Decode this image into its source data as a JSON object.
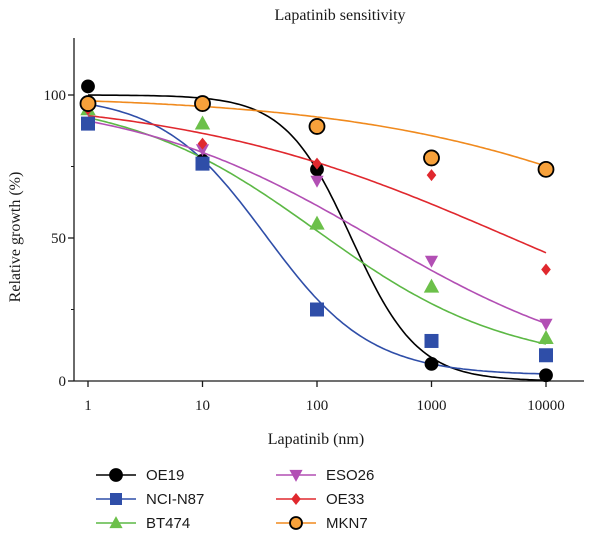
{
  "chart_data": {
    "type": "scatter",
    "title": "Lapatinib sensitivity",
    "xlabel": "Lapatinib (nm)",
    "ylabel": "Relative growth (%)",
    "xscale": "log",
    "xlim": [
      1,
      10000
    ],
    "ylim": [
      0,
      100
    ],
    "x": [
      1,
      10,
      100,
      1000,
      10000
    ],
    "x_tick_labels": [
      "1",
      "10",
      "100",
      "1000",
      "10000"
    ],
    "y_ticks": [
      0,
      50,
      100
    ],
    "y_tick_labels": [
      "0",
      "50",
      "100"
    ],
    "legend_position": "bottom",
    "series": [
      {
        "name": "OE19",
        "color": "#000000",
        "marker": "circle",
        "fill": "#000000",
        "values": [
          103,
          77,
          74,
          6,
          2
        ],
        "fit": {
          "top": 100,
          "bottom": 0,
          "log_ic50": 2.3,
          "hill": 1.5
        }
      },
      {
        "name": "NCI-N87",
        "color": "#2f4ea8",
        "marker": "square",
        "fill": "#2f4ea8",
        "values": [
          90,
          76,
          25,
          14,
          9
        ],
        "fit": {
          "top": 100,
          "bottom": 2,
          "log_ic50": 1.55,
          "hill": 0.95
        }
      },
      {
        "name": "BT474",
        "color": "#5cb845",
        "marker": "triangle-up",
        "fill": "#6cc04a",
        "values": [
          95,
          90,
          55,
          33,
          15
        ],
        "fit": {
          "top": 100,
          "bottom": 5,
          "log_ic50": 2.0,
          "hill": 0.52
        }
      },
      {
        "name": "ESO26",
        "color": "#b24fb4",
        "marker": "triangle-down",
        "fill": "#b24fb4",
        "values": [
          95,
          81,
          70,
          42,
          20
        ],
        "fit": {
          "top": 100,
          "bottom": 0,
          "log_ic50": 2.5,
          "hill": 0.4
        }
      },
      {
        "name": "OE33",
        "color": "#e0282e",
        "marker": "diamond",
        "fill": "#e0282e",
        "values": [
          95,
          83,
          76,
          72,
          39
        ],
        "fit": {
          "top": 100,
          "bottom": 0,
          "log_ic50": 3.7,
          "hill": 0.3
        }
      },
      {
        "name": "MKN7",
        "color": "#f08a1e",
        "marker": "circle",
        "fill": "#f7a13b",
        "values": [
          97,
          97,
          89,
          78,
          74
        ],
        "fit": {
          "top": 100,
          "bottom": 0,
          "log_ic50": 5.6,
          "hill": 0.3
        }
      }
    ]
  }
}
